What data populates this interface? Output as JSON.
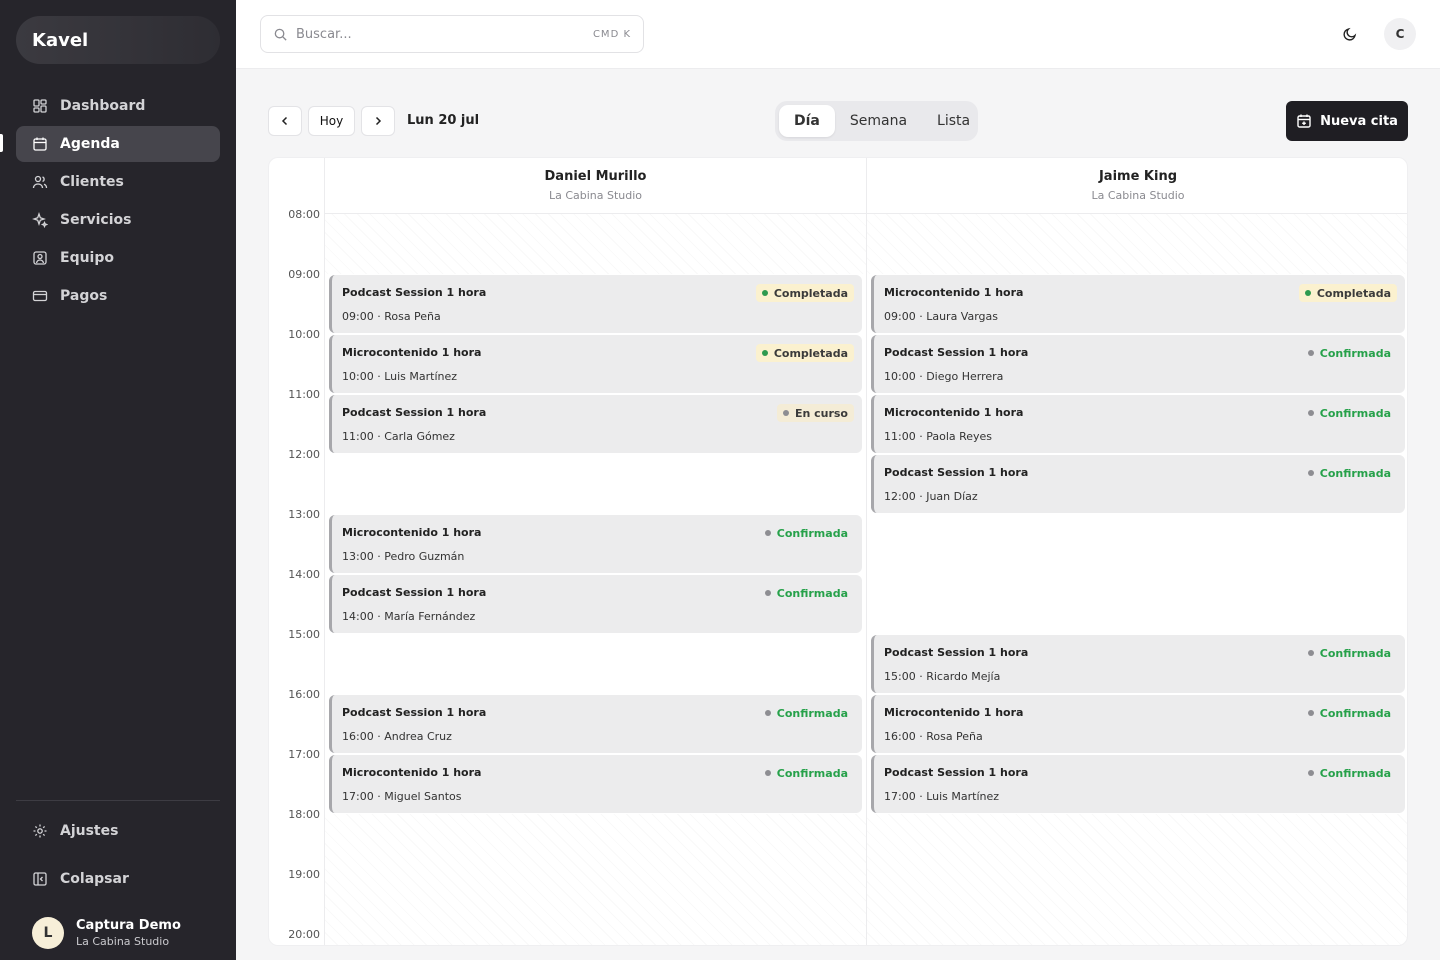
{
  "brand": "Kavel",
  "nav": [
    {
      "label": "Dashboard",
      "icon": "dashboard-icon"
    },
    {
      "label": "Agenda",
      "icon": "calendar-icon",
      "active": true
    },
    {
      "label": "Clientes",
      "icon": "users-icon"
    },
    {
      "label": "Servicios",
      "icon": "sparkles-icon"
    },
    {
      "label": "Equipo",
      "icon": "team-icon"
    },
    {
      "label": "Pagos",
      "icon": "credit-card-icon"
    }
  ],
  "sidebar_bottom": {
    "settings": "Ajustes",
    "collapse": "Colapsar"
  },
  "user": {
    "initial": "L",
    "name": "Captura Demo",
    "org": "La Cabina Studio"
  },
  "search": {
    "placeholder": "Buscar...",
    "shortcut": "CMD K"
  },
  "top_avatar": "C",
  "toolbar": {
    "today": "Hoy",
    "date": "Lun 20 jul",
    "views": [
      "Día",
      "Semana",
      "Lista"
    ],
    "active_view": "Día",
    "new_label": "Nueva cita"
  },
  "hours": [
    "08:00",
    "09:00",
    "10:00",
    "11:00",
    "12:00",
    "13:00",
    "14:00",
    "15:00",
    "16:00",
    "17:00",
    "18:00",
    "19:00",
    "20:00"
  ],
  "columns": [
    {
      "name": "Daniel Murillo",
      "org": "La Cabina Studio",
      "events": [
        {
          "title": "Podcast Session 1 hora",
          "time": "09:00",
          "client": "Rosa Peña",
          "status": "Completada"
        },
        {
          "title": "Microcontenido 1 hora",
          "time": "10:00",
          "client": "Luis Martínez",
          "status": "Completada"
        },
        {
          "title": "Podcast Session 1 hora",
          "time": "11:00",
          "client": "Carla Gómez",
          "status": "En curso"
        },
        {
          "title": "Microcontenido 1 hora",
          "time": "13:00",
          "client": "Pedro Guzmán",
          "status": "Confirmada"
        },
        {
          "title": "Podcast Session 1 hora",
          "time": "14:00",
          "client": "María Fernández",
          "status": "Confirmada"
        },
        {
          "title": "Podcast Session 1 hora",
          "time": "16:00",
          "client": "Andrea Cruz",
          "status": "Confirmada"
        },
        {
          "title": "Microcontenido 1 hora",
          "time": "17:00",
          "client": "Miguel Santos",
          "status": "Confirmada"
        }
      ]
    },
    {
      "name": "Jaime King",
      "org": "La Cabina Studio",
      "events": [
        {
          "title": "Microcontenido 1 hora",
          "time": "09:00",
          "client": "Laura Vargas",
          "status": "Completada"
        },
        {
          "title": "Podcast Session 1 hora",
          "time": "10:00",
          "client": "Diego Herrera",
          "status": "Confirmada"
        },
        {
          "title": "Microcontenido 1 hora",
          "time": "11:00",
          "client": "Paola Reyes",
          "status": "Confirmada"
        },
        {
          "title": "Podcast Session 1 hora",
          "time": "12:00",
          "client": "Juan Díaz",
          "status": "Confirmada"
        },
        {
          "title": "Podcast Session 1 hora",
          "time": "15:00",
          "client": "Ricardo Mejía",
          "status": "Confirmada"
        },
        {
          "title": "Microcontenido 1 hora",
          "time": "16:00",
          "client": "Rosa Peña",
          "status": "Confirmada"
        },
        {
          "title": "Podcast Session 1 hora",
          "time": "17:00",
          "client": "Luis Martínez",
          "status": "Confirmada"
        }
      ]
    }
  ],
  "business_hours": {
    "start": "09:00",
    "end": "18:00"
  },
  "colors": {
    "sidebar": "#26252b",
    "accent": "#1f1e23",
    "confirmed": "#26a14a",
    "completed_bg": "#fbf1cf"
  }
}
